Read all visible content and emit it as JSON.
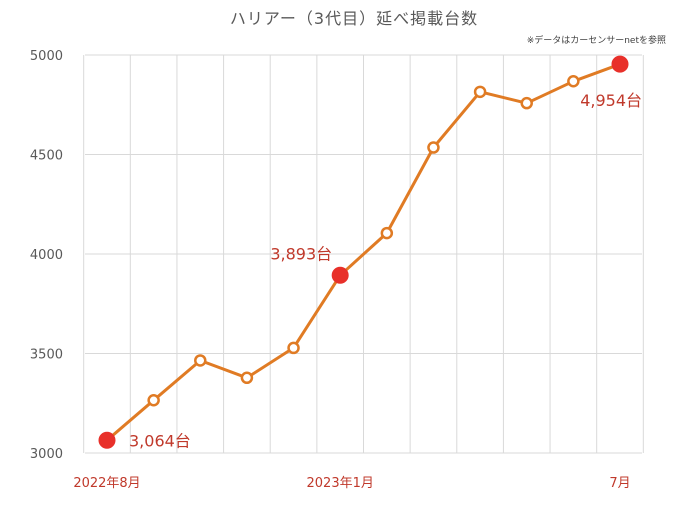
{
  "chart_data": {
    "type": "line",
    "title": "ハリアー（3代目）延べ掲載台数",
    "note": "※データはカーセンサーnetを参照",
    "ylim": [
      3000,
      5000
    ],
    "yticks": [
      "5000",
      "4500",
      "4000",
      "3500",
      "3000"
    ],
    "yticks_values": [
      5000,
      4500,
      4000,
      3500,
      3000
    ],
    "grid": true,
    "line_color": "#e07b24",
    "highlight_color": "#e8302a",
    "x_tick_labels": [
      {
        "index": 0,
        "label": "2022年8月"
      },
      {
        "index": 5,
        "label": "2023年1月"
      },
      {
        "index": 11,
        "label": "7月"
      }
    ],
    "series": [
      {
        "values": [
          3064,
          3265,
          3465,
          3378,
          3528,
          3893,
          4105,
          4535,
          4815,
          4758,
          4868,
          4954
        ]
      }
    ],
    "highlights": [
      {
        "index": 0,
        "label": "3,064台"
      },
      {
        "index": 5,
        "label": "3,893台"
      },
      {
        "index": 11,
        "label": "4,954台"
      }
    ]
  }
}
